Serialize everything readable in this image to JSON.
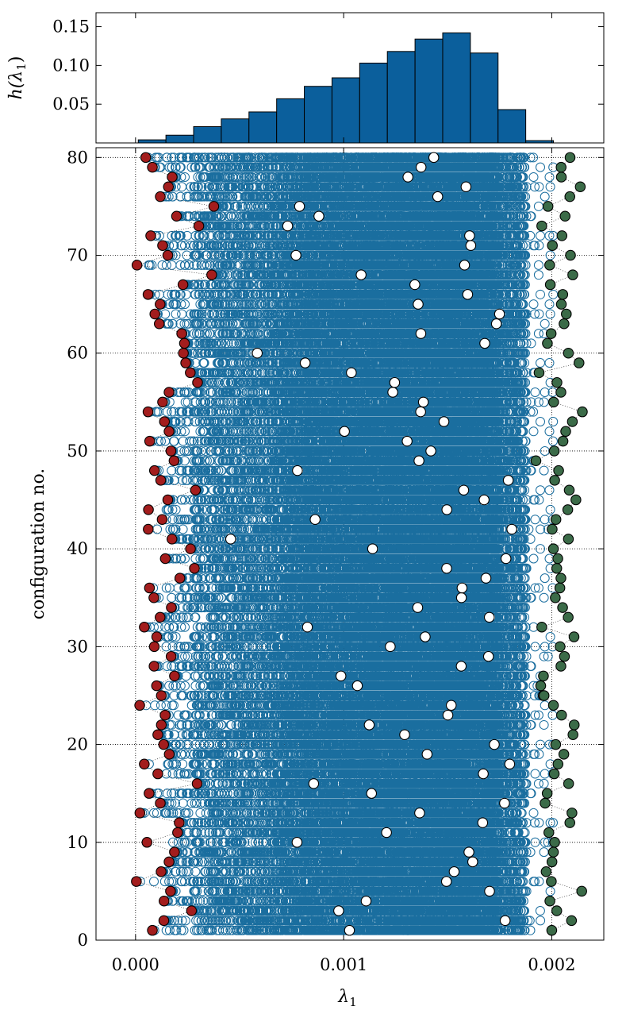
{
  "colors": {
    "histogram_fill": "#0b5f9c",
    "scatter_open": "#1a6e9f",
    "min_marker": "#a31d1d",
    "max_marker": "#3b6b48",
    "median_marker": "#ffffff"
  },
  "chart_data": [
    {
      "type": "bar",
      "panel": "top",
      "ylabel": "h(λ1)",
      "ylabel_parts": {
        "h": "h(",
        "lam": "λ",
        "sub": "1",
        "close": ")"
      },
      "xlim": [
        -0.00019,
        0.00225
      ],
      "ylim": [
        0.0,
        0.168
      ],
      "yticks": [
        0.05,
        0.1,
        0.15
      ],
      "ytick_labels": [
        "0.05",
        "0.10",
        "0.15"
      ],
      "bin_edges": [
        1.3e-05,
        0.000146,
        0.000279,
        0.000412,
        0.000545,
        0.000678,
        0.000811,
        0.000944,
        0.001077,
        0.00121,
        0.001343,
        0.001476,
        0.001609,
        0.001742,
        0.001875,
        0.002008,
        0.002141
      ],
      "values": [
        0.004,
        0.01,
        0.021,
        0.031,
        0.04,
        0.057,
        0.073,
        0.084,
        0.103,
        0.118,
        0.134,
        0.142,
        0.116,
        0.043,
        0.003,
        0.0
      ],
      "grid": false
    },
    {
      "type": "scatter",
      "panel": "bottom",
      "xlabel": "λ1",
      "xlabel_parts": {
        "lam": "λ",
        "sub": "1"
      },
      "ylabel": "configuration no.",
      "xlim": [
        -0.00019,
        0.00225
      ],
      "ylim": [
        0,
        81
      ],
      "xticks": [
        0.0,
        0.001,
        0.002
      ],
      "xtick_labels": [
        "0.000",
        "0.001",
        "0.002"
      ],
      "yticks": [
        0,
        10,
        20,
        30,
        40,
        50,
        60,
        70,
        80
      ],
      "ytick_labels": [
        "0",
        "10",
        "20",
        "30",
        "40",
        "50",
        "60",
        "70",
        "80"
      ],
      "grid": true,
      "configurations": 80,
      "eigenvalues_per_configuration": 800,
      "series": [
        {
          "marker": "open circle",
          "description_rows": "all eigenvalues"
        },
        {
          "marker": "filled red circle",
          "role": "min",
          "x": [
            8.1e-05,
            0.000136,
            0.000269,
            0.000137,
            0.000168,
            4e-06,
            0.000123,
            0.000161,
            0.000187,
            5.5e-05,
            0.000202,
            0.00021,
            2.1e-05,
            0.000119,
            6.5e-05,
            0.000296,
            0.000107,
            4.2e-05,
            0.000162,
            0.000135,
            0.000107,
            0.000124,
            0.000142,
            2e-05,
            0.000124,
            0.000101,
            0.000187,
            8.9e-05,
            0.000171,
            9e-05,
            0.000102,
            4.2e-05,
            0.000118,
            0.000172,
            8.8e-05,
            6.7e-05,
            0.000213,
            0.000283,
            0.000143,
            0.000264,
            0.000175,
            6.1e-05,
            0.000128,
            6.2e-05,
            0.000155,
            0.000288,
            0.000121,
            9.1e-05,
            0.000185,
            0.00017,
            6.8e-05,
            0.000161,
            0.000139,
            6e-05,
            0.00013,
            0.000161,
            0.000298,
            0.000263,
            0.000241,
            0.00023,
            0.000235,
            0.000222,
            0.000114,
            9.3e-05,
            0.000118,
            6e-05,
            0.000228,
            0.000366,
            7e-06,
            0.000155,
            0.00013,
            7.3e-05,
            0.000304,
            0.000197,
            0.000376,
            0.000119,
            0.000158,
            0.000176,
            8.1e-05,
            4.9e-05
          ]
        },
        {
          "marker": "filled white circle",
          "role": "median",
          "x": [
            0.001028,
            0.001776,
            0.000976,
            0.001108,
            0.001701,
            0.001494,
            0.001531,
            0.00162,
            0.001602,
            0.000776,
            0.001206,
            0.001668,
            0.001365,
            0.001773,
            0.001134,
            0.000856,
            0.001671,
            0.001798,
            0.001401,
            0.001724,
            0.001293,
            0.001123,
            0.001501,
            0.001517,
            0.001959,
            0.001066,
            0.000987,
            0.001565,
            0.001696,
            0.001224,
            0.001392,
            0.000826,
            0.0017,
            0.001356,
            0.001566,
            0.001569,
            0.001684,
            0.001495,
            0.00178,
            0.001139,
            0.000457,
            0.001808,
            0.000863,
            0.001496,
            0.001675,
            0.001577,
            0.001791,
            0.000778,
            0.001362,
            0.001419,
            0.001305,
            0.001004,
            0.001482,
            0.00137,
            0.001383,
            0.001236,
            0.001245,
            0.001037,
            0.000815,
            0.000585,
            0.001678,
            0.001371,
            0.001734,
            0.001749,
            0.001358,
            0.001596,
            0.001342,
            0.001084,
            0.001581,
            0.000771,
            0.001611,
            0.001605,
            0.000731,
            0.000881,
            0.000788,
            0.001452,
            0.001588,
            0.001309,
            0.001372,
            0.001433
          ]
        },
        {
          "marker": "filled green circle",
          "role": "max",
          "x": [
            0.002,
            0.002095,
            0.002024,
            0.001991,
            0.002144,
            0.001998,
            0.001973,
            0.002001,
            0.002008,
            0.002014,
            0.001986,
            0.002087,
            0.002097,
            0.001968,
            0.001978,
            0.002081,
            0.002012,
            0.00203,
            0.002058,
            0.002019,
            0.002102,
            0.002108,
            0.002047,
            0.002008,
            0.001963,
            0.001947,
            0.00196,
            0.002044,
            0.002061,
            0.00204,
            0.002107,
            0.001952,
            0.002079,
            0.002052,
            0.002017,
            0.002039,
            0.002044,
            0.002024,
            0.002029,
            0.002008,
            0.00208,
            0.002002,
            0.00202,
            0.002077,
            0.002116,
            0.002084,
            0.002014,
            0.002033,
            0.001924,
            0.002012,
            0.002054,
            0.002067,
            0.002099,
            0.002147,
            0.002009,
            0.002044,
            0.002025,
            0.001939,
            0.002131,
            0.00208,
            0.001979,
            0.001997,
            0.002059,
            0.00207,
            0.002046,
            0.002053,
            0.001993,
            0.002101,
            0.00199,
            0.00209,
            0.002003,
            0.002049,
            0.001952,
            0.002064,
            0.001982,
            0.002087,
            0.002137,
            0.002046,
            0.002045,
            0.002088
          ]
        }
      ]
    }
  ]
}
